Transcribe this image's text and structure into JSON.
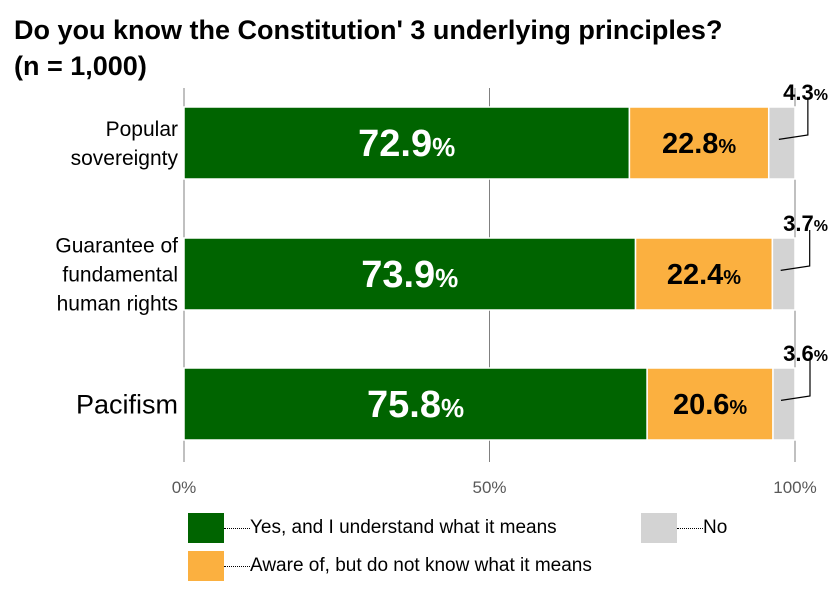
{
  "chart_data": {
    "type": "bar",
    "orientation": "horizontal",
    "stacked": true,
    "title": "Do you know the Constitution' 3 underlying principles?",
    "subtitle": "(n = 1,000)",
    "categories": [
      "Popular sovereignty",
      "Guarantee of fundamental human rights",
      "Pacifism"
    ],
    "category_lines": [
      [
        "Popular",
        "sovereignty"
      ],
      [
        "Guarantee of",
        "fundamental",
        "human rights"
      ],
      [
        "Pacifism"
      ]
    ],
    "series": [
      {
        "name": "Yes, and I understand what it means",
        "values": [
          72.9,
          73.9,
          75.8
        ],
        "color": "#006400"
      },
      {
        "name": "Aware of, but do not know what it means",
        "values": [
          22.8,
          22.4,
          20.6
        ],
        "color": "#fbb040"
      },
      {
        "name": "No",
        "values": [
          4.3,
          3.7,
          3.6
        ],
        "color": "#d3d3d3"
      }
    ],
    "value_labels": [
      [
        "72.9",
        "22.8",
        "4.3"
      ],
      [
        "73.9",
        "22.4",
        "3.7"
      ],
      [
        "75.8",
        "20.6",
        "3.6"
      ]
    ],
    "unit": "%",
    "xlim": [
      0,
      100
    ],
    "xticks": [
      "0%",
      "50%",
      "100%"
    ],
    "grid": true,
    "legend_position": "bottom"
  }
}
